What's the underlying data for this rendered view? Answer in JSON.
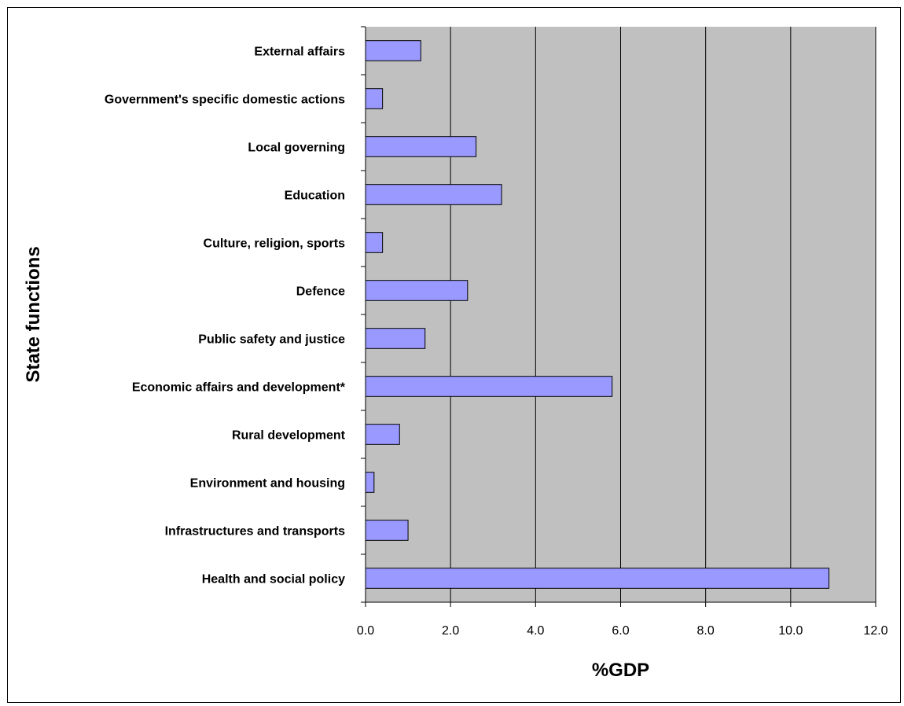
{
  "chart_data": {
    "type": "bar",
    "orientation": "horizontal",
    "xlabel": "%GDP",
    "ylabel": "State functions",
    "xlim": [
      0,
      12
    ],
    "xticks": [
      "0.0",
      "2.0",
      "4.0",
      "6.0",
      "8.0",
      "10.0",
      "12.0"
    ],
    "grid": "vertical gridlines",
    "categories": [
      "External affairs",
      "Government's specific domestic actions",
      "Local governing",
      "Education",
      "Culture, religion, sports",
      "Defence",
      "Public safety and justice",
      "Economic affairs and development*",
      "Rural development",
      "Environment and housing",
      "Infrastructures and transports",
      "Health and social policy"
    ],
    "values": [
      1.3,
      0.4,
      2.6,
      3.2,
      0.4,
      2.4,
      1.4,
      5.8,
      0.8,
      0.2,
      1.0,
      10.9
    ],
    "colors": {
      "bar": "#9999ff",
      "plot_bg": "#c0c0c0"
    }
  }
}
